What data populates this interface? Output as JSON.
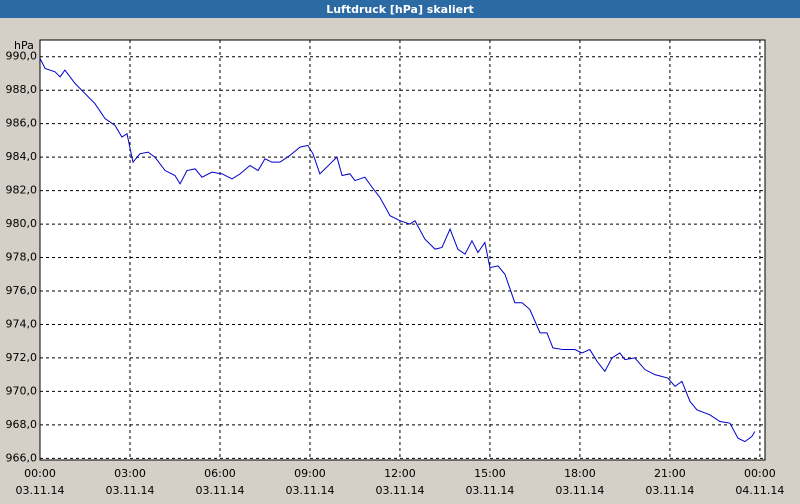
{
  "chart_data": {
    "type": "line",
    "title": "Luftdruck [hPa] skaliert",
    "y_label": "hPa",
    "xlim": [
      0,
      24.17
    ],
    "ylim": [
      965.9,
      991.0
    ],
    "xticks": [
      {
        "value": 0,
        "label": "00:00",
        "date": "03.11.14"
      },
      {
        "value": 3,
        "label": "03:00",
        "date": "03.11.14"
      },
      {
        "value": 6,
        "label": "06:00",
        "date": "03.11.14"
      },
      {
        "value": 9,
        "label": "09:00",
        "date": "03.11.14"
      },
      {
        "value": 12,
        "label": "12:00",
        "date": "03.11.14"
      },
      {
        "value": 15,
        "label": "15:00",
        "date": "03.11.14"
      },
      {
        "value": 18,
        "label": "18:00",
        "date": "03.11.14"
      },
      {
        "value": 21,
        "label": "21:00",
        "date": "03.11.14"
      },
      {
        "value": 24,
        "label": "00:00",
        "date": "04.11.14"
      }
    ],
    "yticks": [
      {
        "value": 966,
        "label": "966,0"
      },
      {
        "value": 968,
        "label": "968,0"
      },
      {
        "value": 970,
        "label": "970,0"
      },
      {
        "value": 972,
        "label": "972,0"
      },
      {
        "value": 974,
        "label": "974,0"
      },
      {
        "value": 976,
        "label": "976,0"
      },
      {
        "value": 978,
        "label": "978,0"
      },
      {
        "value": 980,
        "label": "980,0"
      },
      {
        "value": 982,
        "label": "982,0"
      },
      {
        "value": 984,
        "label": "984,0"
      },
      {
        "value": 986,
        "label": "986,0"
      },
      {
        "value": 988,
        "label": "988,0"
      },
      {
        "value": 990,
        "label": "990,0"
      }
    ],
    "grid": true,
    "x": [
      0,
      0.17,
      0.5,
      0.67,
      0.83,
      1.17,
      1.5,
      1.83,
      2.17,
      2.5,
      2.73,
      2.9,
      3.1,
      3.33,
      3.6,
      3.83,
      4.17,
      4.5,
      4.67,
      4.9,
      5.17,
      5.4,
      5.73,
      6.07,
      6.4,
      6.67,
      7.0,
      7.27,
      7.5,
      7.73,
      8.0,
      8.33,
      8.67,
      8.93,
      9.1,
      9.33,
      9.5,
      9.67,
      9.9,
      10.07,
      10.33,
      10.5,
      10.83,
      11.07,
      11.33,
      11.67,
      12.0,
      12.33,
      12.5,
      12.83,
      13.17,
      13.4,
      13.67,
      13.93,
      14.17,
      14.4,
      14.6,
      14.83,
      15.0,
      15.27,
      15.5,
      15.83,
      16.07,
      16.33,
      16.67,
      16.9,
      17.1,
      17.43,
      17.83,
      18.07,
      18.33,
      18.57,
      18.83,
      19.07,
      19.33,
      19.5,
      19.83,
      20.17,
      20.5,
      20.93,
      21.17,
      21.4,
      21.67,
      21.9,
      22.33,
      22.67,
      23.0,
      23.27,
      23.5,
      23.73,
      23.83
    ],
    "series": [
      {
        "color": "#0000c8",
        "values": [
          989.9,
          989.3,
          989.1,
          988.8,
          989.2,
          988.4,
          987.8,
          987.2,
          986.3,
          985.9,
          985.2,
          985.4,
          983.7,
          984.2,
          984.3,
          984.0,
          983.2,
          982.9,
          982.4,
          983.2,
          983.3,
          982.8,
          983.1,
          983.0,
          982.7,
          983.0,
          983.5,
          983.2,
          983.9,
          983.7,
          983.7,
          984.1,
          984.6,
          984.7,
          984.2,
          983.0,
          983.3,
          983.6,
          984.0,
          982.9,
          983.0,
          982.6,
          982.8,
          982.2,
          981.6,
          980.5,
          980.2,
          980.0,
          980.2,
          979.1,
          978.5,
          978.6,
          979.7,
          978.5,
          978.2,
          979.0,
          978.3,
          978.9,
          977.4,
          977.5,
          977.0,
          975.3,
          975.3,
          974.9,
          973.5,
          973.5,
          972.6,
          972.5,
          972.5,
          972.3,
          972.5,
          971.8,
          971.2,
          972.0,
          972.3,
          971.9,
          972.0,
          971.3,
          971.0,
          970.8,
          970.3,
          970.6,
          969.4,
          968.9,
          968.6,
          968.2,
          968.1,
          967.2,
          967.0,
          967.3,
          967.6
        ]
      }
    ]
  }
}
